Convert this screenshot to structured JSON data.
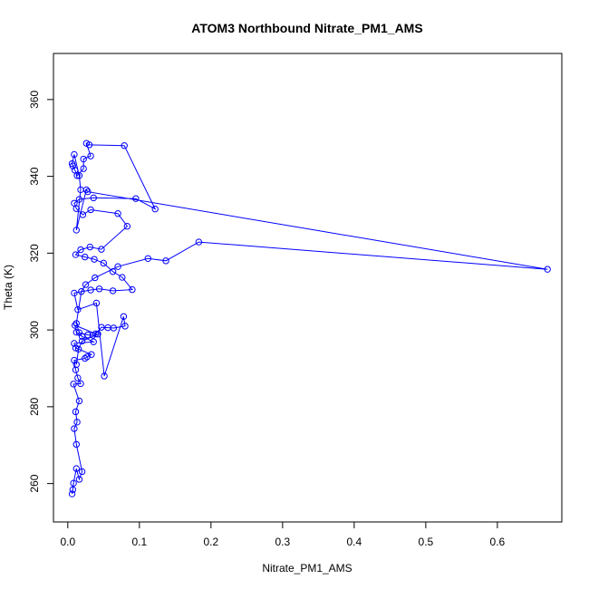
{
  "chart_data": {
    "type": "line",
    "title": "ATOM3 Northbound Nitrate_PM1_AMS",
    "xlabel": "Nitrate_PM1_AMS",
    "ylabel": "Theta (K)",
    "xlim": [
      -0.02,
      0.69
    ],
    "ylim": [
      250,
      372
    ],
    "x_ticks": [
      0.0,
      0.1,
      0.2,
      0.3,
      0.4,
      0.5,
      0.6
    ],
    "x_tick_labels": [
      "0.0",
      "0.1",
      "0.2",
      "0.3",
      "0.4",
      "0.5",
      "0.6"
    ],
    "y_ticks": [
      260,
      280,
      300,
      320,
      340,
      360
    ],
    "y_tick_labels": [
      "260",
      "280",
      "300",
      "320",
      "340",
      "360"
    ],
    "grid": false,
    "series": [
      {
        "color": "#0000ff",
        "marker": "open-circle",
        "points": [
          [
            0.006,
            257.3
          ],
          [
            0.007,
            258.4
          ],
          [
            0.008,
            260.1
          ],
          [
            0.012,
            263.9
          ],
          [
            0.016,
            261.1
          ],
          [
            0.02,
            263.1
          ],
          [
            0.012,
            270.2
          ],
          [
            0.009,
            274.3
          ],
          [
            0.013,
            276.0
          ],
          [
            0.011,
            278.7
          ],
          [
            0.016,
            281.5
          ],
          [
            0.008,
            285.9
          ],
          [
            0.018,
            286.0
          ],
          [
            0.014,
            287.5
          ],
          [
            0.011,
            289.6
          ],
          [
            0.009,
            292.1
          ],
          [
            0.024,
            292.6
          ],
          [
            0.027,
            293.0
          ],
          [
            0.033,
            293.6
          ],
          [
            0.011,
            295.3
          ],
          [
            0.009,
            296.5
          ],
          [
            0.036,
            296.9
          ],
          [
            0.02,
            298.3
          ],
          [
            0.012,
            299.4
          ],
          [
            0.01,
            301.2
          ],
          [
            0.039,
            299.0
          ],
          [
            0.047,
            300.7
          ],
          [
            0.056,
            300.6
          ],
          [
            0.064,
            300.5
          ],
          [
            0.08,
            301.0
          ],
          [
            0.078,
            303.5
          ],
          [
            0.051,
            288.0
          ],
          [
            0.04,
            307.0
          ],
          [
            0.014,
            305.3
          ],
          [
            0.009,
            309.6
          ],
          [
            0.032,
            310.4
          ],
          [
            0.044,
            310.7
          ],
          [
            0.063,
            310.2
          ],
          [
            0.09,
            310.5
          ],
          [
            0.076,
            313.7
          ],
          [
            0.063,
            315.2
          ],
          [
            0.05,
            317.4
          ],
          [
            0.037,
            318.4
          ],
          [
            0.024,
            319.0
          ],
          [
            0.011,
            319.6
          ],
          [
            0.018,
            320.9
          ],
          [
            0.031,
            321.6
          ],
          [
            0.047,
            321.0
          ],
          [
            0.083,
            327.0
          ],
          [
            0.07,
            330.3
          ],
          [
            0.032,
            331.3
          ],
          [
            0.021,
            330.0
          ],
          [
            0.012,
            331.6
          ],
          [
            0.009,
            333.0
          ],
          [
            0.016,
            334.0
          ],
          [
            0.036,
            334.4
          ],
          [
            0.095,
            334.2
          ],
          [
            0.122,
            331.5
          ],
          [
            0.079,
            348.0
          ],
          [
            0.03,
            348.2
          ],
          [
            0.026,
            348.6
          ],
          [
            0.032,
            345.3
          ],
          [
            0.022,
            344.5
          ],
          [
            0.022,
            342.0
          ],
          [
            0.013,
            340.2
          ],
          [
            0.01,
            341.6
          ],
          [
            0.007,
            342.7
          ],
          [
            0.006,
            343.3
          ],
          [
            0.009,
            345.7
          ],
          [
            0.016,
            340.2
          ],
          [
            0.018,
            336.5
          ],
          [
            0.012,
            326.0
          ],
          [
            0.026,
            336.5
          ],
          [
            0.028,
            336.0
          ],
          [
            0.67,
            315.8
          ],
          [
            0.183,
            322.9
          ],
          [
            0.137,
            318.0
          ],
          [
            0.112,
            318.6
          ],
          [
            0.07,
            316.5
          ],
          [
            0.038,
            313.6
          ],
          [
            0.025,
            311.8
          ],
          [
            0.019,
            310.0
          ],
          [
            0.012,
            301.7
          ],
          [
            0.016,
            299.3
          ],
          [
            0.028,
            298.7
          ],
          [
            0.035,
            298.6
          ],
          [
            0.042,
            298.9
          ],
          [
            0.02,
            297.1
          ],
          [
            0.015,
            295.0
          ],
          [
            0.012,
            291.0
          ]
        ]
      }
    ]
  }
}
